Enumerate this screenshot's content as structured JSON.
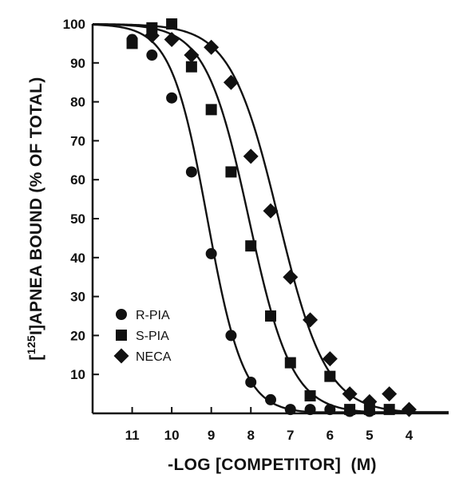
{
  "chart_data": {
    "type": "scatter",
    "xlabel": "-LOG [COMPETITOR]  (M)",
    "ylabel_pre": "[",
    "ylabel_sup": "125",
    "ylabel_post": "I]APNEA BOUND (% OF TOTAL)",
    "xlim": [
      12,
      3
    ],
    "ylim": [
      0,
      100
    ],
    "x_ticks": [
      11,
      10,
      9,
      8,
      7,
      6,
      5,
      4
    ],
    "y_ticks": [
      10,
      20,
      30,
      40,
      50,
      60,
      70,
      80,
      90,
      100
    ],
    "grid": false,
    "legend_position": "bottom-left",
    "series": [
      {
        "name": "R-PIA",
        "marker": "circle",
        "fit_ic50_log": 9.1,
        "fit_hill": 0.95,
        "points": [
          {
            "x": 11,
            "y": 96
          },
          {
            "x": 10.5,
            "y": 92
          },
          {
            "x": 10,
            "y": 81
          },
          {
            "x": 9.5,
            "y": 62
          },
          {
            "x": 9,
            "y": 41
          },
          {
            "x": 8.5,
            "y": 20
          },
          {
            "x": 8,
            "y": 8
          },
          {
            "x": 7.5,
            "y": 3.5
          },
          {
            "x": 7,
            "y": 1
          },
          {
            "x": 6.5,
            "y": 1
          },
          {
            "x": 6,
            "y": 1
          },
          {
            "x": 5.5,
            "y": 0.5
          },
          {
            "x": 5,
            "y": 0.5
          }
        ]
      },
      {
        "name": "S-PIA",
        "marker": "square",
        "fit_ic50_log": 8.05,
        "fit_hill": 0.8,
        "points": [
          {
            "x": 11,
            "y": 95
          },
          {
            "x": 10.5,
            "y": 99
          },
          {
            "x": 10,
            "y": 100
          },
          {
            "x": 9.5,
            "y": 89
          },
          {
            "x": 9,
            "y": 78
          },
          {
            "x": 8.5,
            "y": 62
          },
          {
            "x": 8,
            "y": 43
          },
          {
            "x": 7.5,
            "y": 25
          },
          {
            "x": 7,
            "y": 13
          },
          {
            "x": 6.5,
            "y": 4.5
          },
          {
            "x": 6,
            "y": 9.5
          },
          {
            "x": 5.5,
            "y": 1
          },
          {
            "x": 5,
            "y": 1
          },
          {
            "x": 4.5,
            "y": 1
          }
        ]
      },
      {
        "name": "NECA",
        "marker": "diamond",
        "fit_ic50_log": 7.3,
        "fit_hill": 0.72,
        "points": [
          {
            "x": 10.5,
            "y": 97
          },
          {
            "x": 10,
            "y": 96
          },
          {
            "x": 9.5,
            "y": 92
          },
          {
            "x": 9,
            "y": 94
          },
          {
            "x": 8.5,
            "y": 85
          },
          {
            "x": 8,
            "y": 66
          },
          {
            "x": 7.5,
            "y": 52
          },
          {
            "x": 7,
            "y": 35
          },
          {
            "x": 6.5,
            "y": 24
          },
          {
            "x": 6,
            "y": 14
          },
          {
            "x": 5.5,
            "y": 5
          },
          {
            "x": 5,
            "y": 3
          },
          {
            "x": 4.5,
            "y": 5
          },
          {
            "x": 4,
            "y": 1
          }
        ]
      }
    ]
  }
}
